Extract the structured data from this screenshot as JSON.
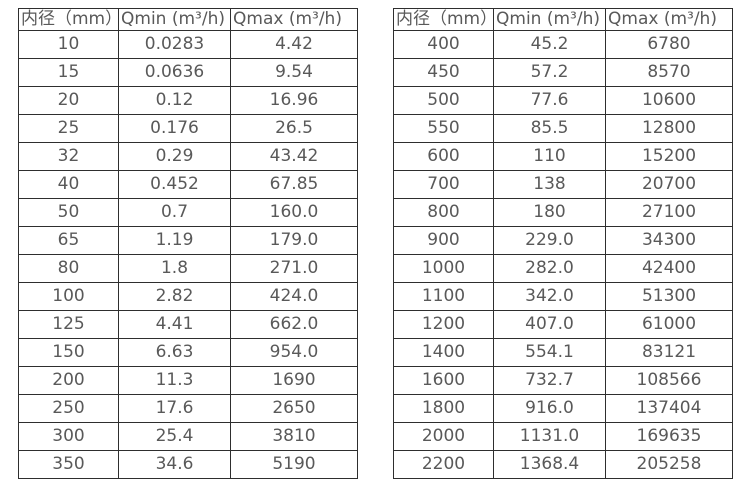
{
  "page": {
    "background_color": "#ffffff",
    "border_color": "#2e2e2e",
    "text_color": "#595959"
  },
  "chart_data": [
    {
      "type": "table",
      "title": "",
      "columns": [
        "内径（mm）",
        "Qmin (m³/h)",
        "Qmax (m³/h)"
      ],
      "rows": [
        [
          "10",
          "0.0283",
          "4.42"
        ],
        [
          "15",
          "0.0636",
          "9.54"
        ],
        [
          "20",
          "0.12",
          "16.96"
        ],
        [
          "25",
          "0.176",
          "26.5"
        ],
        [
          "32",
          "0.29",
          "43.42"
        ],
        [
          "40",
          "0.452",
          "67.85"
        ],
        [
          "50",
          "0.7",
          "160.0"
        ],
        [
          "65",
          "1.19",
          "179.0"
        ],
        [
          "80",
          "1.8",
          "271.0"
        ],
        [
          "100",
          "2.82",
          "424.0"
        ],
        [
          "125",
          "4.41",
          "662.0"
        ],
        [
          "150",
          "6.63",
          "954.0"
        ],
        [
          "200",
          "11.3",
          "1690"
        ],
        [
          "250",
          "17.6",
          "2650"
        ],
        [
          "300",
          "25.4",
          "3810"
        ],
        [
          "350",
          "34.6",
          "5190"
        ]
      ]
    },
    {
      "type": "table",
      "title": "",
      "columns": [
        "内径（mm）",
        "Qmin (m³/h)",
        "Qmax (m³/h)"
      ],
      "rows": [
        [
          "400",
          "45.2",
          "6780"
        ],
        [
          "450",
          "57.2",
          "8570"
        ],
        [
          "500",
          "77.6",
          "10600"
        ],
        [
          "550",
          "85.5",
          "12800"
        ],
        [
          "600",
          "110",
          "15200"
        ],
        [
          "700",
          "138",
          "20700"
        ],
        [
          "800",
          "180",
          "27100"
        ],
        [
          "900",
          "229.0",
          "34300"
        ],
        [
          "1000",
          "282.0",
          "42400"
        ],
        [
          "1100",
          "342.0",
          "51300"
        ],
        [
          "1200",
          "407.0",
          "61000"
        ],
        [
          "1400",
          "554.1",
          "83121"
        ],
        [
          "1600",
          "732.7",
          "108566"
        ],
        [
          "1800",
          "916.0",
          "137404"
        ],
        [
          "2000",
          "1131.0",
          "169635"
        ],
        [
          "2200",
          "1368.4",
          "205258"
        ]
      ]
    }
  ]
}
